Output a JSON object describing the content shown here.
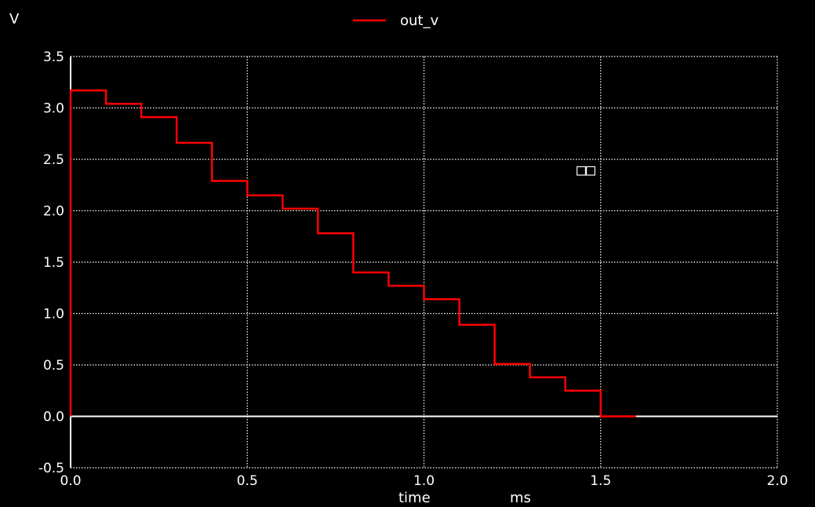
{
  "chart_data": {
    "type": "line",
    "step": true,
    "ylabel": "V",
    "xlabel": "time",
    "xunit": "ms",
    "xlim": [
      0.0,
      2.0
    ],
    "ylim": [
      -0.5,
      3.5
    ],
    "x_ticks": [
      "0.0",
      "0.5",
      "1.0",
      "1.5",
      "2.0"
    ],
    "y_ticks": [
      "3.5",
      "3.0",
      "2.5",
      "2.0",
      "1.5",
      "1.0",
      "0.5",
      "0.0",
      "-0.5"
    ],
    "grid": true,
    "legend_position": "top-center",
    "annotation": "□□",
    "series": [
      {
        "name": "out_v",
        "color": "#ff0000",
        "x": [
          0.0,
          0.0,
          0.1,
          0.1,
          0.2,
          0.2,
          0.3,
          0.3,
          0.4,
          0.4,
          0.5,
          0.5,
          0.6,
          0.6,
          0.7,
          0.7,
          0.8,
          0.8,
          0.9,
          0.9,
          1.0,
          1.0,
          1.1,
          1.1,
          1.2,
          1.2,
          1.3,
          1.3,
          1.4,
          1.4,
          1.5,
          1.5,
          1.6
        ],
        "y": [
          0.0,
          3.17,
          3.17,
          3.04,
          3.04,
          2.91,
          2.91,
          2.66,
          2.66,
          2.29,
          2.29,
          2.15,
          2.15,
          2.02,
          2.02,
          1.78,
          1.78,
          1.4,
          1.4,
          1.27,
          1.27,
          1.14,
          1.14,
          0.89,
          0.89,
          0.51,
          0.51,
          0.38,
          0.38,
          0.25,
          0.25,
          0.0,
          0.0
        ]
      }
    ]
  },
  "colors": {
    "background": "#000000",
    "axis": "#ffffff",
    "grid": "#ffffff",
    "zero_line": "#ffffff",
    "series": "#ff0000"
  }
}
